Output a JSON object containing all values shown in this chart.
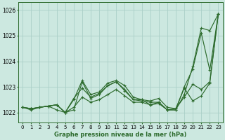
{
  "title": "Graphe pression niveau de la mer (hPa)",
  "bg_color": "#cce8e0",
  "grid_color": "#aacfc8",
  "line_color": "#2d6b2d",
  "x_ticks": [
    0,
    1,
    2,
    3,
    4,
    5,
    6,
    7,
    8,
    9,
    10,
    11,
    12,
    13,
    14,
    15,
    16,
    17,
    18,
    19,
    20,
    21,
    22,
    23
  ],
  "ylim": [
    1021.6,
    1026.3
  ],
  "yticks": [
    1022,
    1023,
    1024,
    1025,
    1026
  ],
  "series": [
    [
      1022.2,
      1022.15,
      1022.2,
      1022.25,
      1022.3,
      1022.0,
      1022.55,
      1022.95,
      1022.6,
      1022.75,
      1023.05,
      1023.2,
      1022.85,
      1022.5,
      1022.5,
      1022.3,
      1022.35,
      1022.1,
      1022.15,
      1022.6,
      1023.1,
      1022.9,
      1023.2,
      1025.85
    ],
    [
      1022.2,
      1022.15,
      1022.2,
      1022.25,
      1022.3,
      1022.0,
      1022.5,
      1023.25,
      1022.7,
      1022.8,
      1023.15,
      1023.25,
      1023.05,
      1022.6,
      1022.5,
      1022.45,
      1022.55,
      1022.2,
      1022.15,
      1022.95,
      1022.45,
      1022.65,
      1023.15,
      1025.85
    ],
    [
      1022.2,
      1022.1,
      1022.2,
      1022.25,
      1022.1,
      1022.0,
      1022.1,
      1023.2,
      1022.55,
      1022.7,
      1023.05,
      1023.2,
      1022.9,
      1022.5,
      1022.45,
      1022.4,
      1022.4,
      1022.1,
      1022.1,
      1023.0,
      1023.7,
      1025.1,
      1023.65,
      1025.85
    ],
    [
      1022.2,
      1022.15,
      1022.2,
      1022.25,
      1022.3,
      1022.0,
      1022.2,
      1022.6,
      1022.4,
      1022.5,
      1022.7,
      1022.9,
      1022.65,
      1022.4,
      1022.4,
      1022.3,
      1022.4,
      1022.1,
      1022.1,
      1022.7,
      1023.8,
      1025.3,
      1025.2,
      1025.85
    ]
  ]
}
